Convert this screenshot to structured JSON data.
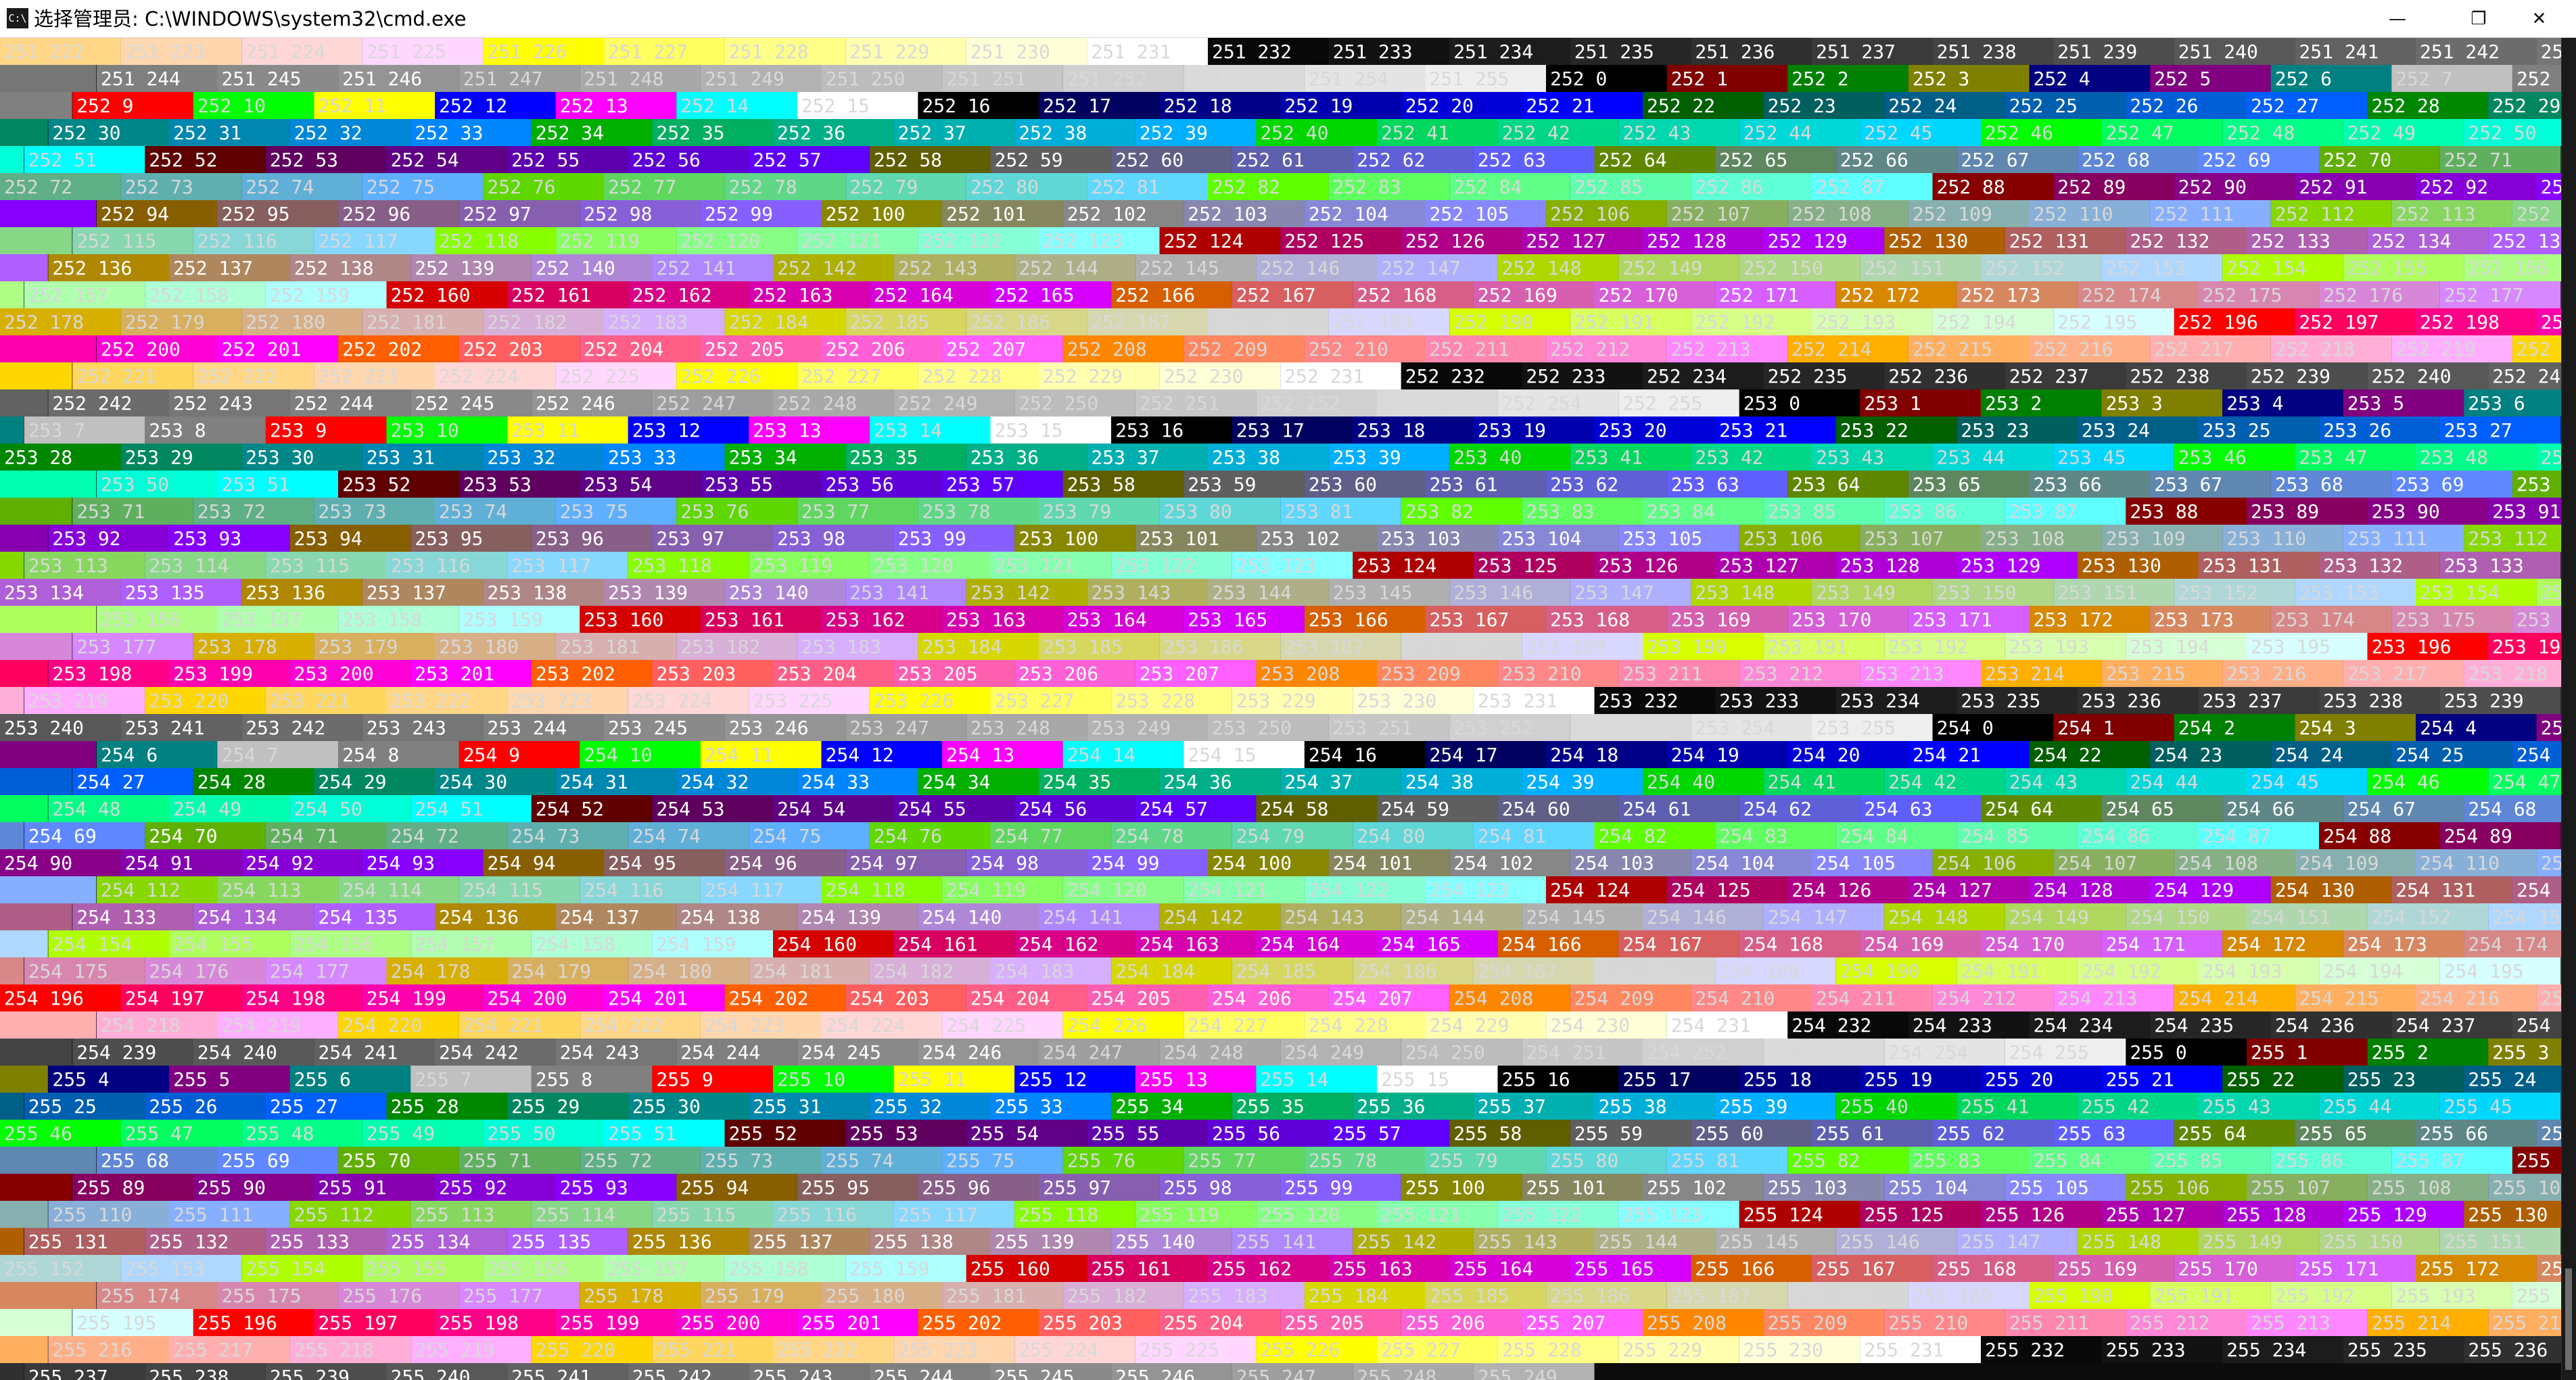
{
  "window": {
    "title": "选择管理员: C:\\WINDOWS\\system32\\cmd.exe",
    "icon": "cmd-icon",
    "minimize_glyph": "—",
    "maximize_glyph": "❐",
    "close_glyph": "✕"
  },
  "console": {
    "line_prefixes": [
      251,
      252,
      253,
      254,
      255
    ],
    "indices_per_prefix": 256,
    "first_visible_line": {
      "prefix": 251,
      "index": 222
    },
    "last_visible_line": {
      "prefix": 255,
      "index": 249
    },
    "text_colors": {
      "on_dark": "#ffffff",
      "on_light": "#d8d8d8"
    },
    "background": "#0c0c0c"
  }
}
